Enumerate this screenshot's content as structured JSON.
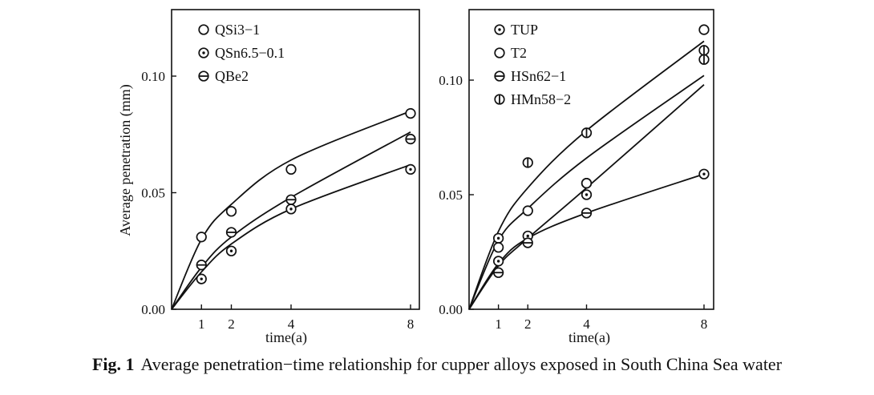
{
  "caption": {
    "label": "Fig. 1",
    "text": "Average penetration−time relationship for cupper alloys exposed in South China Sea water"
  },
  "chart_data": [
    {
      "type": "scatter",
      "panel": "left",
      "xlabel": "time(a)",
      "ylabel": "Average penetration (mm)",
      "x_ticks": [
        1,
        2,
        4,
        8
      ],
      "y_ticks": [
        "0.00",
        "0.05",
        "0.10"
      ],
      "xlim": [
        0,
        8.3
      ],
      "ylim": [
        0,
        0.128
      ],
      "grid": false,
      "legend_position": "top-left",
      "series": [
        {
          "name": "QSi3−1",
          "marker": "open",
          "x": [
            1,
            2,
            4,
            8
          ],
          "y": [
            0.031,
            0.042,
            0.06,
            0.084
          ],
          "fit": [
            0.03,
            0.045,
            0.064,
            0.085
          ]
        },
        {
          "name": "QSn6.5−0.1",
          "marker": "dot",
          "x": [
            1,
            2,
            4,
            8
          ],
          "y": [
            0.013,
            0.025,
            0.043,
            0.06
          ],
          "fit": [
            0.016,
            0.028,
            0.043,
            0.062
          ]
        },
        {
          "name": "QBe2",
          "marker": "hbar",
          "x": [
            1,
            2,
            4,
            8
          ],
          "y": [
            0.019,
            0.033,
            0.047,
            0.073
          ],
          "fit": [
            0.018,
            0.031,
            0.048,
            0.076
          ]
        }
      ]
    },
    {
      "type": "scatter",
      "panel": "right",
      "xlabel": "time(a)",
      "ylabel": "",
      "x_ticks": [
        1,
        2,
        4,
        8
      ],
      "y_ticks": [
        "0.00",
        "0.05",
        "0.10"
      ],
      "xlim": [
        0,
        8.3
      ],
      "ylim": [
        0,
        0.128
      ],
      "grid": false,
      "legend_position": "top-left",
      "series": [
        {
          "name": "TUP",
          "marker": "dot",
          "x": [
            1,
            1,
            2,
            4,
            4,
            8
          ],
          "y": [
            0.031,
            0.021,
            0.032,
            0.055,
            0.05,
            0.059
          ],
          "fit": [
            0.02,
            0.031,
            0.042,
            0.059
          ]
        },
        {
          "name": "T2",
          "marker": "open",
          "x": [
            1,
            2,
            4,
            8
          ],
          "y": [
            0.027,
            0.043,
            0.055,
            0.122
          ],
          "fit": [
            0.03,
            0.044,
            0.066,
            0.102
          ]
        },
        {
          "name": "HSn62−1",
          "marker": "hbar",
          "x": [
            1,
            2,
            4
          ],
          "y": [
            0.016,
            0.029,
            0.042
          ],
          "fit": [
            0.019,
            0.031,
            0.053,
            0.098
          ]
        },
        {
          "name": "HMn58−2",
          "marker": "vbar",
          "x": [
            2,
            4,
            8,
            8
          ],
          "y": [
            0.064,
            0.077,
            0.113,
            0.109
          ],
          "fit": [
            0.034,
            0.053,
            0.078,
            0.117
          ]
        }
      ]
    }
  ]
}
